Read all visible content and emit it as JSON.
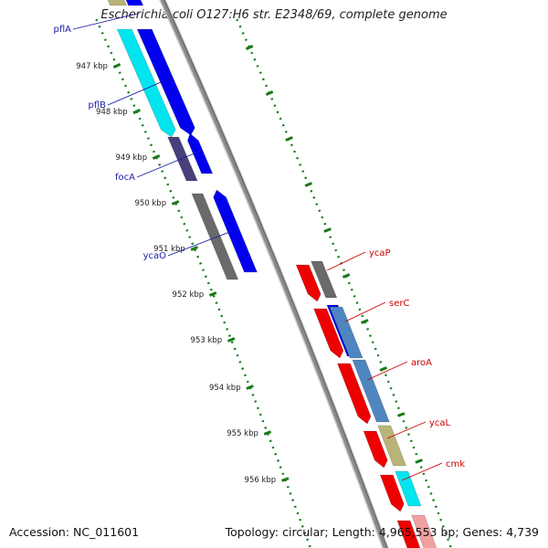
{
  "title": "Escherichia coli O127:H6 str. E2348/69, complete genome",
  "footer": {
    "accession": "Accession: NC_011601",
    "summary": "Topology: circular; Length: 4,965,553 bp; Genes: 4,739"
  },
  "scale_labels": [
    "947 kbp",
    "948 kbp",
    "949 kbp",
    "950 kbp",
    "951 kbp",
    "952 kbp",
    "953 kbp",
    "954 kbp",
    "955 kbp",
    "956 kbp"
  ],
  "genes_left": [
    "pflA",
    "pflB",
    "focA",
    "ycaO"
  ],
  "genes_right": [
    "ycaP",
    "serC",
    "aroA",
    "ycaL",
    "cmk"
  ],
  "colors": {
    "forward_cds": "#0000ee",
    "reverse_cds": "#ee0000",
    "left_label": "#1a1aa6",
    "right_label": "#cc0000",
    "tick": "#1a7a1a",
    "backbone": "#8a8a8a",
    "cyan": "#00e5ee",
    "olive": "#b8b478",
    "slate": "#48407a",
    "gray": "#6a6a6a",
    "steelblue": "#4f86c0",
    "pink": "#f0a0a0"
  }
}
